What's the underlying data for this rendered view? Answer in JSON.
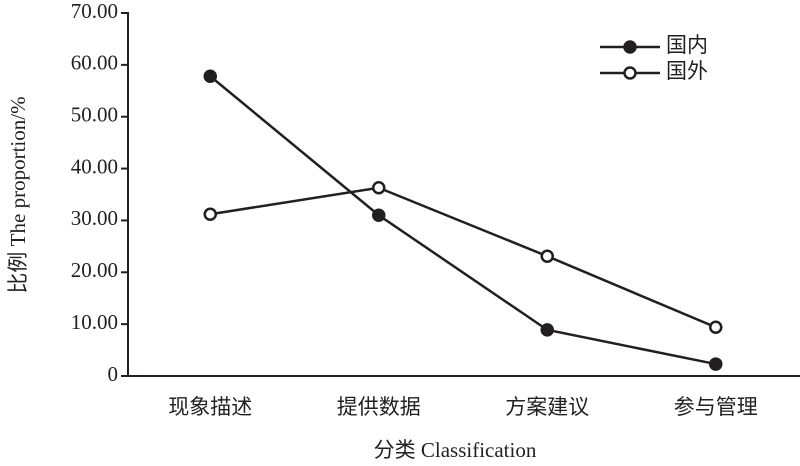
{
  "chart_data": {
    "type": "line",
    "x_label": "分类  Classification",
    "y_label": "比例  The proportion/%",
    "categories": [
      "现象描述",
      "提供数据",
      "方案建议",
      "参与管理"
    ],
    "series": [
      {
        "name": "国内",
        "color": "#231f20",
        "marker": "filled-circle",
        "values": [
          57.8,
          31.0,
          8.9,
          2.3
        ]
      },
      {
        "name": "国外",
        "color": "#231f20",
        "marker": "open-circle",
        "values": [
          31.2,
          36.3,
          23.1,
          9.4
        ]
      }
    ],
    "ylim": [
      0,
      70
    ],
    "yticks": [
      0,
      {
        "value": 10,
        "label": "10.00"
      },
      {
        "value": 20,
        "label": "20.00"
      },
      {
        "value": 30,
        "label": "30.00"
      },
      {
        "value": 40,
        "label": "40.00"
      },
      {
        "value": 50,
        "label": "50.00"
      },
      {
        "value": 60,
        "label": "60.00"
      },
      {
        "value": 70,
        "label": "70.00"
      }
    ],
    "grid": false,
    "legend": "top-right"
  }
}
